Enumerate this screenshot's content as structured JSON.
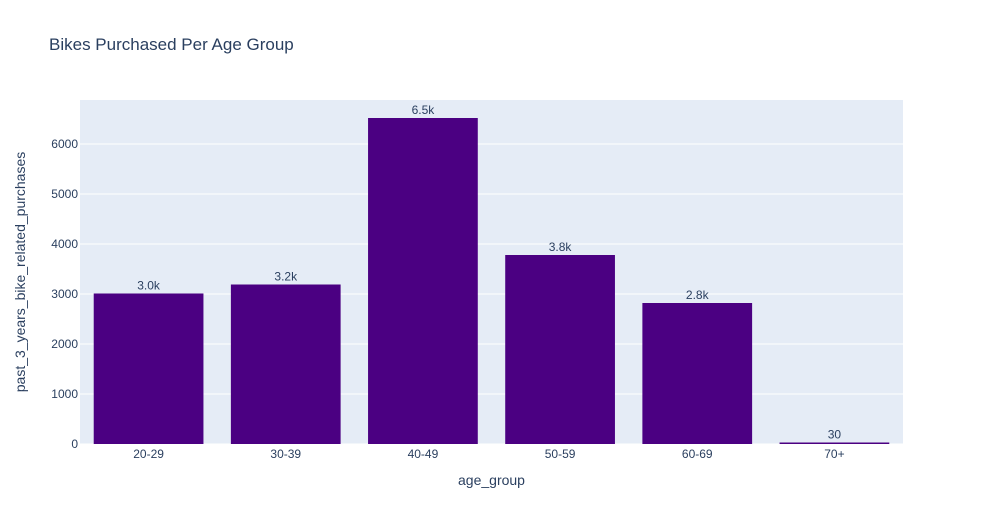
{
  "chart_data": {
    "type": "bar",
    "title": "Bikes Purchased Per Age Group",
    "xlabel": "age_group",
    "ylabel": "past_3_years_bike_related_purchases",
    "categories": [
      "20-29",
      "30-39",
      "40-49",
      "50-59",
      "60-69",
      "70+"
    ],
    "values": [
      3010,
      3190,
      6520,
      3780,
      2820,
      30
    ],
    "value_labels": [
      "3.0k",
      "3.2k",
      "6.5k",
      "3.8k",
      "2.8k",
      "30"
    ],
    "ylim": [
      0,
      6880
    ],
    "yticks": [
      0,
      1000,
      2000,
      3000,
      4000,
      5000,
      6000
    ],
    "ytick_labels": [
      "0",
      "1000",
      "2000",
      "3000",
      "4000",
      "5000",
      "6000"
    ],
    "grid": true,
    "legend": "none",
    "colors": {
      "bar": "#4b0082",
      "plot_bg": "#e5ecf6",
      "grid": "#ffffff",
      "text": "#2a3f5f"
    }
  }
}
